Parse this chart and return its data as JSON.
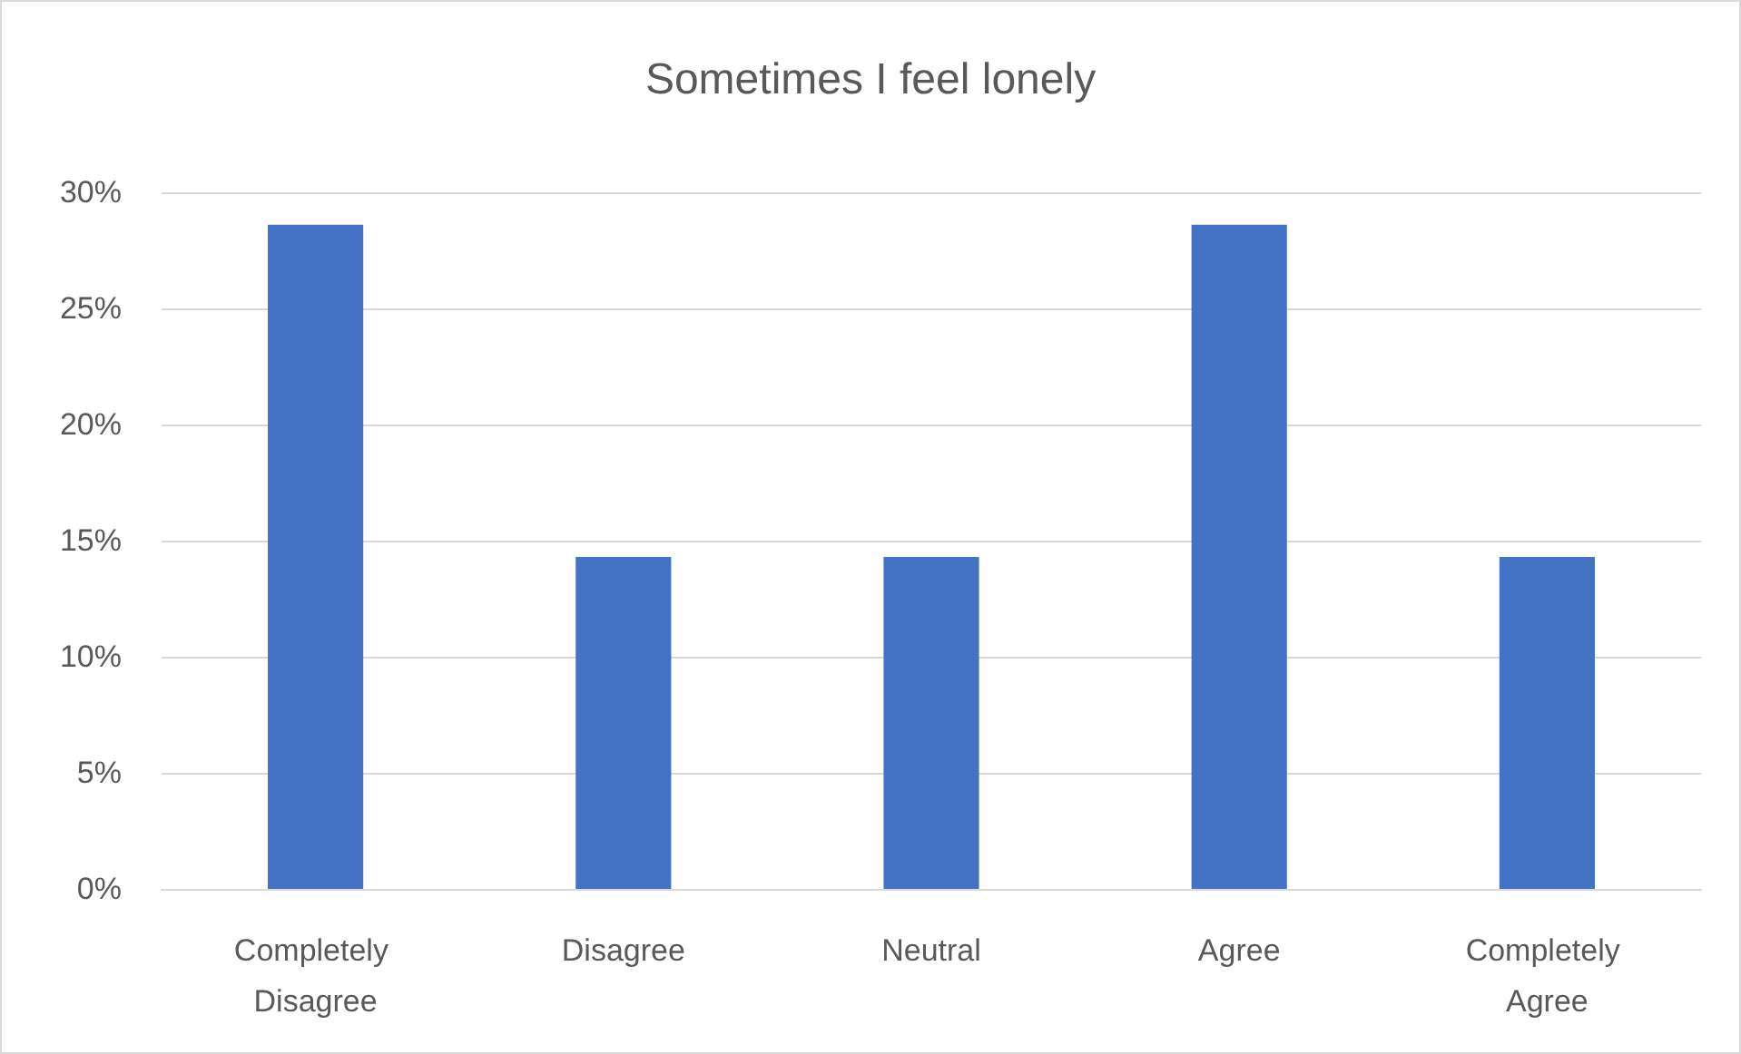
{
  "chart_data": {
    "type": "bar",
    "title": "Sometimes I feel lonely",
    "categories": [
      "Completely Disagree",
      "Disagree",
      "Neutral",
      "Agree",
      "Completely Agree"
    ],
    "values": [
      28.6,
      14.3,
      14.3,
      28.6,
      14.3
    ],
    "color": "#4472c4",
    "ylim": [
      0,
      30
    ],
    "yticks": [
      {
        "value": 0,
        "label": "0%"
      },
      {
        "value": 5,
        "label": "5%"
      },
      {
        "value": 10,
        "label": "10%"
      },
      {
        "value": 15,
        "label": "15%"
      },
      {
        "value": 20,
        "label": "20%"
      },
      {
        "value": 25,
        "label": "25%"
      },
      {
        "value": 30,
        "label": "30%"
      }
    ],
    "grid": "y"
  }
}
